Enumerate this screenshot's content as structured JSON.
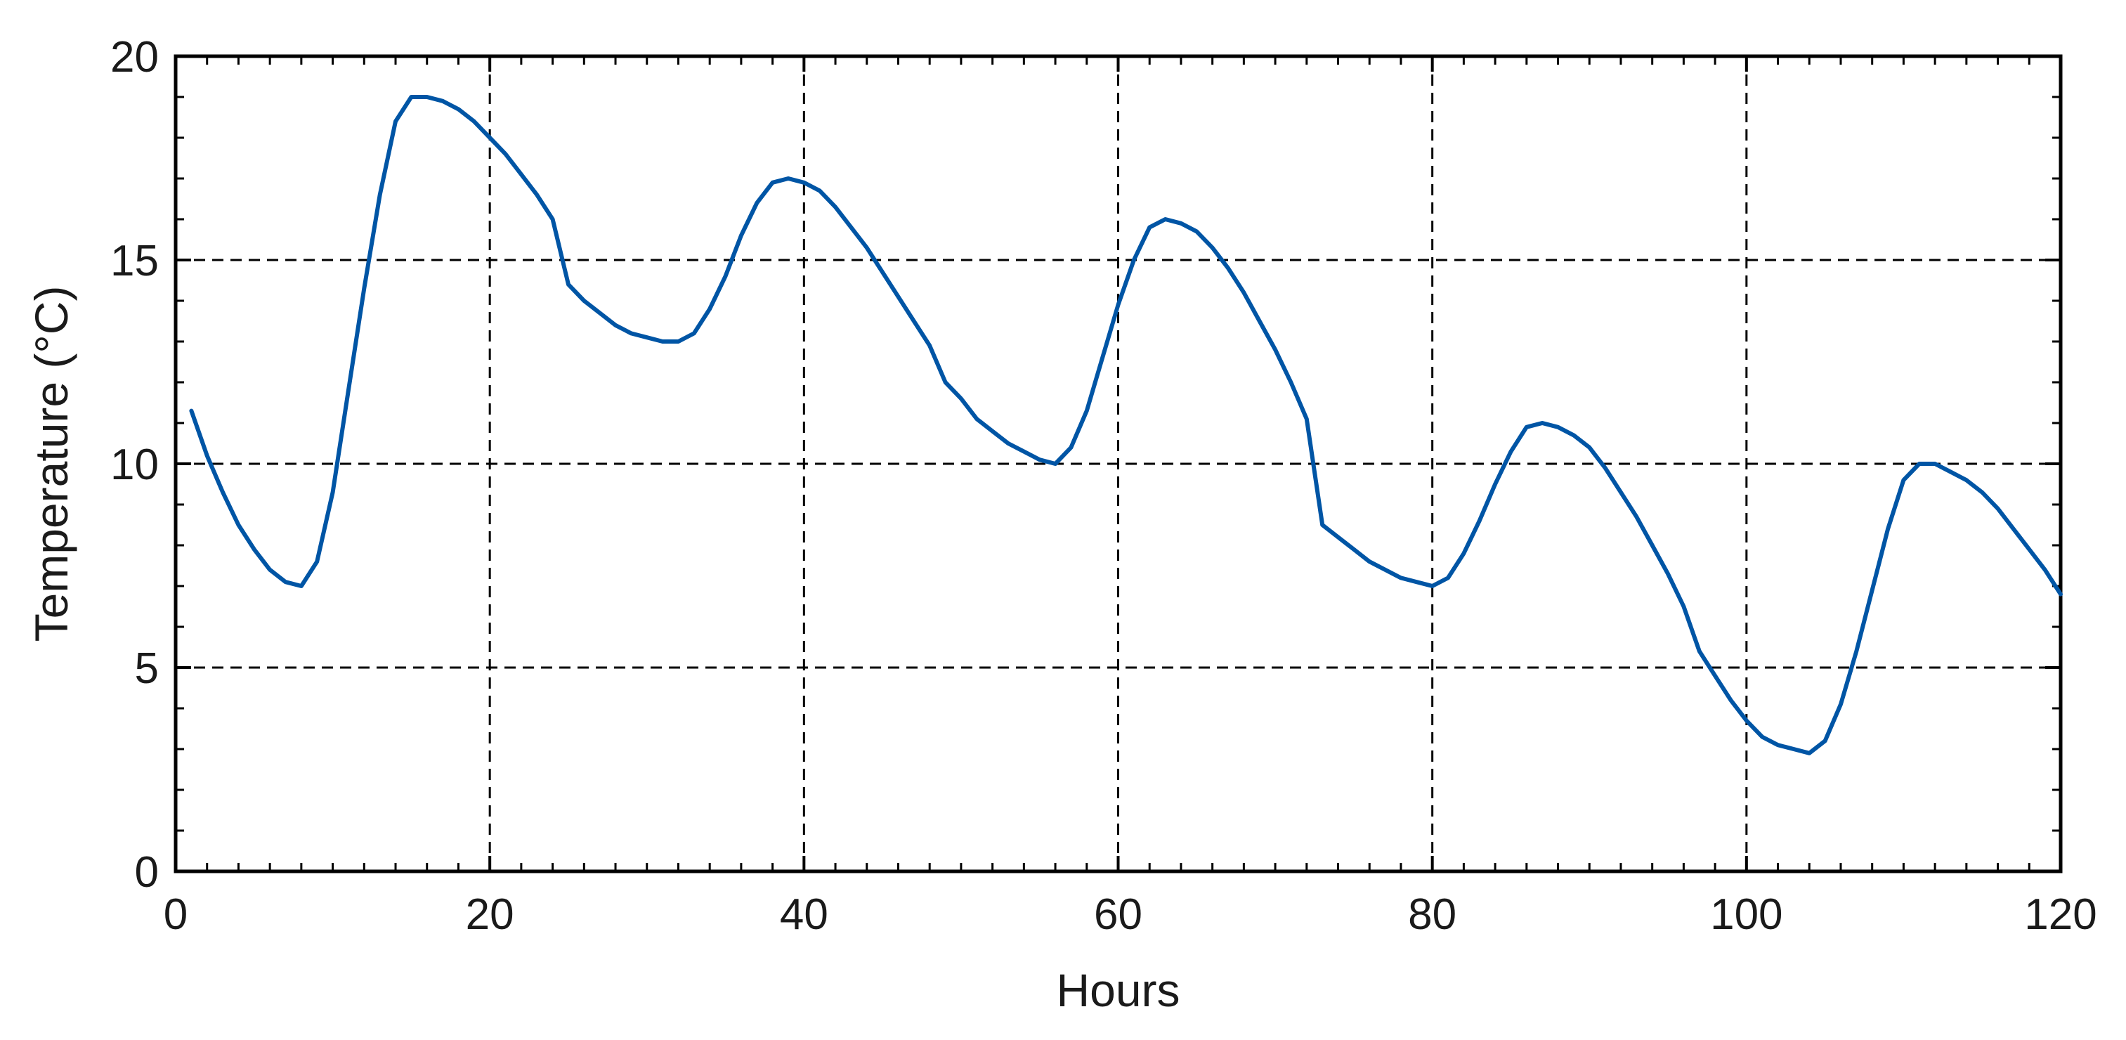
{
  "chart_data": {
    "type": "line",
    "title": "",
    "xlabel": "Hours",
    "ylabel": "Temperature (°C)",
    "xlim": [
      0,
      120
    ],
    "ylim": [
      0,
      20
    ],
    "xticks": [
      0,
      20,
      40,
      60,
      80,
      100,
      120
    ],
    "yticks": [
      0,
      5,
      10,
      15,
      20
    ],
    "grid": true,
    "grid_style": "dashed",
    "line_color": "#0055a5",
    "axis_color": "#000000",
    "series": [
      {
        "x": [
          1,
          2,
          3,
          4,
          5,
          6,
          7,
          8,
          9,
          10,
          11,
          12,
          13,
          14,
          15,
          16,
          17,
          18,
          19,
          20,
          21,
          22,
          23,
          24,
          25,
          26,
          27,
          28,
          29,
          30,
          31,
          32,
          33,
          34,
          35,
          36,
          37,
          38,
          39,
          40,
          41,
          42,
          43,
          44,
          45,
          46,
          47,
          48,
          49,
          50,
          51,
          52,
          53,
          54,
          55,
          56,
          57,
          58,
          59,
          60,
          61,
          62,
          63,
          64,
          65,
          66,
          67,
          68,
          69,
          70,
          71,
          72,
          73,
          74,
          75,
          76,
          77,
          78,
          79,
          80,
          81,
          82,
          83,
          84,
          85,
          86,
          87,
          88,
          89,
          90,
          91,
          92,
          93,
          94,
          95,
          96,
          97,
          98,
          99,
          100,
          101,
          102,
          103,
          104,
          105,
          106,
          107,
          108,
          109,
          110,
          111,
          112,
          113,
          114,
          115,
          116,
          117,
          118,
          119,
          120
        ],
        "values": [
          11.3,
          10.2,
          9.3,
          8.5,
          7.9,
          7.4,
          7.1,
          7.0,
          7.6,
          9.3,
          11.8,
          14.3,
          16.6,
          18.4,
          19.0,
          19.0,
          18.9,
          18.7,
          18.4,
          18.0,
          17.6,
          17.1,
          16.6,
          16.0,
          14.4,
          14.0,
          13.7,
          13.4,
          13.2,
          13.1,
          13.0,
          13.0,
          13.2,
          13.8,
          14.6,
          15.6,
          16.4,
          16.9,
          17.0,
          16.9,
          16.7,
          16.3,
          15.8,
          15.3,
          14.7,
          14.1,
          13.5,
          12.9,
          12.0,
          11.6,
          11.1,
          10.8,
          10.5,
          10.3,
          10.1,
          10.0,
          10.4,
          11.3,
          12.6,
          13.9,
          15.0,
          15.8,
          16.0,
          15.9,
          15.7,
          15.3,
          14.8,
          14.2,
          13.5,
          12.8,
          12.0,
          11.1,
          8.5,
          8.2,
          7.9,
          7.6,
          7.4,
          7.2,
          7.1,
          7.0,
          7.2,
          7.8,
          8.6,
          9.5,
          10.3,
          10.9,
          11.0,
          10.9,
          10.7,
          10.4,
          9.9,
          9.3,
          8.7,
          8.0,
          7.3,
          6.5,
          5.4,
          4.8,
          4.2,
          3.7,
          3.3,
          3.1,
          3.0,
          2.9,
          3.2,
          4.1,
          5.4,
          6.9,
          8.4,
          9.6,
          10.0,
          10.0,
          9.8,
          9.6,
          9.3,
          8.9,
          8.4,
          7.9,
          7.4,
          6.8
        ]
      }
    ]
  }
}
